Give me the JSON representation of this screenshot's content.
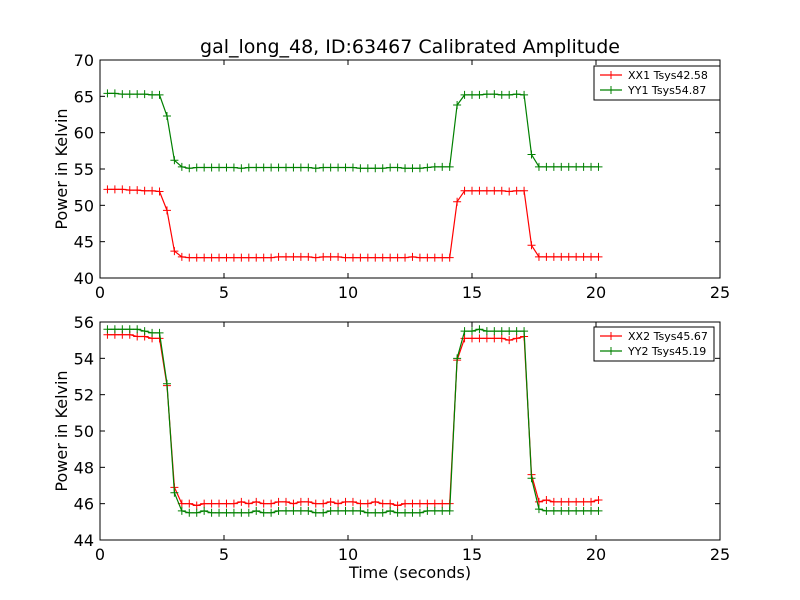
{
  "chart_data": [
    {
      "type": "line",
      "title": "gal_long_48, ID:63467 Calibrated Amplitude",
      "xlabel": "",
      "ylabel": "Power in Kelvin",
      "xlim": [
        0,
        25
      ],
      "ylim": [
        40,
        70
      ],
      "xticks": [
        "0",
        "5",
        "10",
        "15",
        "20",
        "25"
      ],
      "yticks": [
        "40",
        "45",
        "50",
        "55",
        "60",
        "65",
        "70"
      ],
      "grid": false,
      "legend_position": "top-right",
      "series": [
        {
          "name": "XX1 Tsys42.58",
          "color": "#ff0000",
          "marker": "plus",
          "x": [
            0.3,
            0.6,
            0.9,
            1.2,
            1.5,
            1.8,
            2.1,
            2.4,
            2.7,
            3.0,
            3.3,
            3.6,
            3.9,
            4.2,
            4.5,
            4.8,
            5.1,
            5.4,
            5.7,
            6.0,
            6.3,
            6.6,
            6.9,
            7.2,
            7.5,
            7.8,
            8.1,
            8.4,
            8.7,
            9.0,
            9.3,
            9.6,
            9.9,
            10.2,
            10.5,
            10.8,
            11.1,
            11.4,
            11.7,
            12.0,
            12.3,
            12.6,
            12.9,
            13.2,
            13.5,
            13.8,
            14.1,
            14.4,
            14.7,
            15.0,
            15.3,
            15.6,
            15.9,
            16.2,
            16.5,
            16.8,
            17.1,
            17.4,
            17.7,
            18.0,
            18.3,
            18.6,
            18.9,
            19.2,
            19.5,
            19.8,
            20.1
          ],
          "y": [
            52.2,
            52.2,
            52.2,
            52.1,
            52.1,
            52.0,
            52.0,
            51.9,
            49.3,
            43.7,
            42.9,
            42.8,
            42.8,
            42.8,
            42.8,
            42.8,
            42.8,
            42.8,
            42.8,
            42.8,
            42.8,
            42.8,
            42.8,
            42.9,
            42.9,
            42.9,
            42.9,
            42.9,
            42.8,
            42.9,
            42.9,
            42.9,
            42.8,
            42.8,
            42.8,
            42.8,
            42.8,
            42.8,
            42.8,
            42.8,
            42.8,
            42.9,
            42.8,
            42.8,
            42.8,
            42.8,
            42.8,
            50.5,
            52.0,
            52.0,
            52.0,
            52.0,
            52.0,
            52.0,
            51.9,
            52.0,
            52.0,
            44.5,
            42.9,
            42.9,
            42.9,
            42.9,
            42.9,
            42.9,
            42.9,
            42.9,
            42.9
          ]
        },
        {
          "name": "YY1 Tsys54.87",
          "color": "#008000",
          "marker": "plus",
          "x": [
            0.3,
            0.6,
            0.9,
            1.2,
            1.5,
            1.8,
            2.1,
            2.4,
            2.7,
            3.0,
            3.3,
            3.6,
            3.9,
            4.2,
            4.5,
            4.8,
            5.1,
            5.4,
            5.7,
            6.0,
            6.3,
            6.6,
            6.9,
            7.2,
            7.5,
            7.8,
            8.1,
            8.4,
            8.7,
            9.0,
            9.3,
            9.6,
            9.9,
            10.2,
            10.5,
            10.8,
            11.1,
            11.4,
            11.7,
            12.0,
            12.3,
            12.6,
            12.9,
            13.2,
            13.5,
            13.8,
            14.1,
            14.4,
            14.7,
            15.0,
            15.3,
            15.6,
            15.9,
            16.2,
            16.5,
            16.8,
            17.1,
            17.4,
            17.7,
            18.0,
            18.3,
            18.6,
            18.9,
            19.2,
            19.5,
            19.8,
            20.1
          ],
          "y": [
            65.4,
            65.4,
            65.3,
            65.3,
            65.3,
            65.3,
            65.2,
            65.2,
            62.3,
            56.2,
            55.3,
            55.1,
            55.2,
            55.2,
            55.2,
            55.2,
            55.2,
            55.2,
            55.1,
            55.2,
            55.2,
            55.2,
            55.2,
            55.2,
            55.2,
            55.2,
            55.2,
            55.2,
            55.1,
            55.2,
            55.2,
            55.2,
            55.2,
            55.2,
            55.1,
            55.1,
            55.1,
            55.1,
            55.2,
            55.2,
            55.1,
            55.1,
            55.1,
            55.2,
            55.3,
            55.3,
            55.3,
            63.8,
            65.2,
            65.2,
            65.2,
            65.3,
            65.3,
            65.2,
            65.2,
            65.3,
            65.2,
            57.0,
            55.3,
            55.3,
            55.3,
            55.3,
            55.3,
            55.3,
            55.3,
            55.3,
            55.3
          ]
        }
      ]
    },
    {
      "type": "line",
      "title": "",
      "xlabel": "Time (seconds)",
      "ylabel": "Power in Kelvin",
      "xlim": [
        0,
        25
      ],
      "ylim": [
        44,
        56
      ],
      "xticks": [
        "0",
        "5",
        "10",
        "15",
        "20",
        "25"
      ],
      "yticks": [
        "44",
        "46",
        "48",
        "50",
        "52",
        "54",
        "56"
      ],
      "grid": false,
      "legend_position": "top-right",
      "series": [
        {
          "name": "XX2 Tsys45.67",
          "color": "#ff0000",
          "marker": "plus",
          "x": [
            0.3,
            0.6,
            0.9,
            1.2,
            1.5,
            1.8,
            2.1,
            2.4,
            2.7,
            3.0,
            3.3,
            3.6,
            3.9,
            4.2,
            4.5,
            4.8,
            5.1,
            5.4,
            5.7,
            6.0,
            6.3,
            6.6,
            6.9,
            7.2,
            7.5,
            7.8,
            8.1,
            8.4,
            8.7,
            9.0,
            9.3,
            9.6,
            9.9,
            10.2,
            10.5,
            10.8,
            11.1,
            11.4,
            11.7,
            12.0,
            12.3,
            12.6,
            12.9,
            13.2,
            13.5,
            13.8,
            14.1,
            14.4,
            14.7,
            15.0,
            15.3,
            15.6,
            15.9,
            16.2,
            16.5,
            16.8,
            17.1,
            17.4,
            17.7,
            18.0,
            18.3,
            18.6,
            18.9,
            19.2,
            19.5,
            19.8,
            20.1
          ],
          "y": [
            55.3,
            55.3,
            55.3,
            55.3,
            55.2,
            55.2,
            55.1,
            55.1,
            52.5,
            46.9,
            46.0,
            46.0,
            45.9,
            46.0,
            46.0,
            46.0,
            46.0,
            46.0,
            46.1,
            46.0,
            46.1,
            46.0,
            46.0,
            46.1,
            46.1,
            46.0,
            46.1,
            46.1,
            46.0,
            46.0,
            46.1,
            46.0,
            46.1,
            46.1,
            46.0,
            46.0,
            46.1,
            46.0,
            46.0,
            45.9,
            46.0,
            46.0,
            46.0,
            46.0,
            46.0,
            46.0,
            46.0,
            53.9,
            55.1,
            55.1,
            55.1,
            55.1,
            55.1,
            55.1,
            55.0,
            55.1,
            55.2,
            47.6,
            46.1,
            46.2,
            46.1,
            46.1,
            46.1,
            46.1,
            46.1,
            46.1,
            46.2
          ]
        },
        {
          "name": "YY2 Tsys45.19",
          "color": "#008000",
          "marker": "plus",
          "x": [
            0.3,
            0.6,
            0.9,
            1.2,
            1.5,
            1.8,
            2.1,
            2.4,
            2.7,
            3.0,
            3.3,
            3.6,
            3.9,
            4.2,
            4.5,
            4.8,
            5.1,
            5.4,
            5.7,
            6.0,
            6.3,
            6.6,
            6.9,
            7.2,
            7.5,
            7.8,
            8.1,
            8.4,
            8.7,
            9.0,
            9.3,
            9.6,
            9.9,
            10.2,
            10.5,
            10.8,
            11.1,
            11.4,
            11.7,
            12.0,
            12.3,
            12.6,
            12.9,
            13.2,
            13.5,
            13.8,
            14.1,
            14.4,
            14.7,
            15.0,
            15.3,
            15.6,
            15.9,
            16.2,
            16.5,
            16.8,
            17.1,
            17.4,
            17.7,
            18.0,
            18.3,
            18.6,
            18.9,
            19.2,
            19.5,
            19.8,
            20.1
          ],
          "y": [
            55.6,
            55.6,
            55.6,
            55.6,
            55.6,
            55.5,
            55.4,
            55.4,
            52.6,
            46.6,
            45.6,
            45.5,
            45.5,
            45.6,
            45.5,
            45.5,
            45.5,
            45.5,
            45.5,
            45.5,
            45.6,
            45.5,
            45.5,
            45.6,
            45.6,
            45.6,
            45.6,
            45.6,
            45.5,
            45.5,
            45.6,
            45.6,
            45.6,
            45.6,
            45.6,
            45.5,
            45.5,
            45.5,
            45.6,
            45.5,
            45.5,
            45.5,
            45.5,
            45.6,
            45.6,
            45.6,
            45.6,
            54.0,
            55.5,
            55.5,
            55.6,
            55.5,
            55.5,
            55.5,
            55.5,
            55.5,
            55.5,
            47.4,
            45.7,
            45.6,
            45.6,
            45.6,
            45.6,
            45.6,
            45.6,
            45.6,
            45.6
          ]
        }
      ]
    }
  ]
}
